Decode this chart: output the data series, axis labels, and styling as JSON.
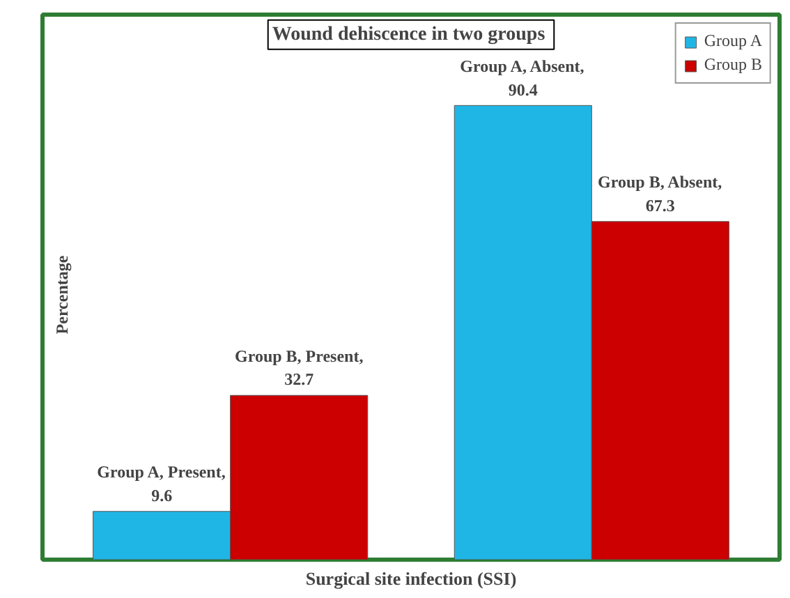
{
  "chart_data": {
    "type": "bar",
    "title": "Wound  dehiscence in two groups",
    "xlabel": "Surgical site infection (SSI)",
    "ylabel": "Percentage",
    "categories": [
      null,
      null
    ],
    "series": [
      {
        "name": "Group A",
        "color": "#1fb6e6",
        "values": [
          9.6,
          90.4
        ],
        "value_labels": [
          "Group A, Present, 9.6",
          "Group A, Absent, 90.4"
        ]
      },
      {
        "name": "Group B",
        "color": "#cc0000",
        "values": [
          32.7,
          67.3
        ],
        "value_labels": [
          "Group B, Present, 32.7",
          "Group B, Absent, 67.3"
        ]
      }
    ],
    "legend": "top right",
    "grid": false
  }
}
